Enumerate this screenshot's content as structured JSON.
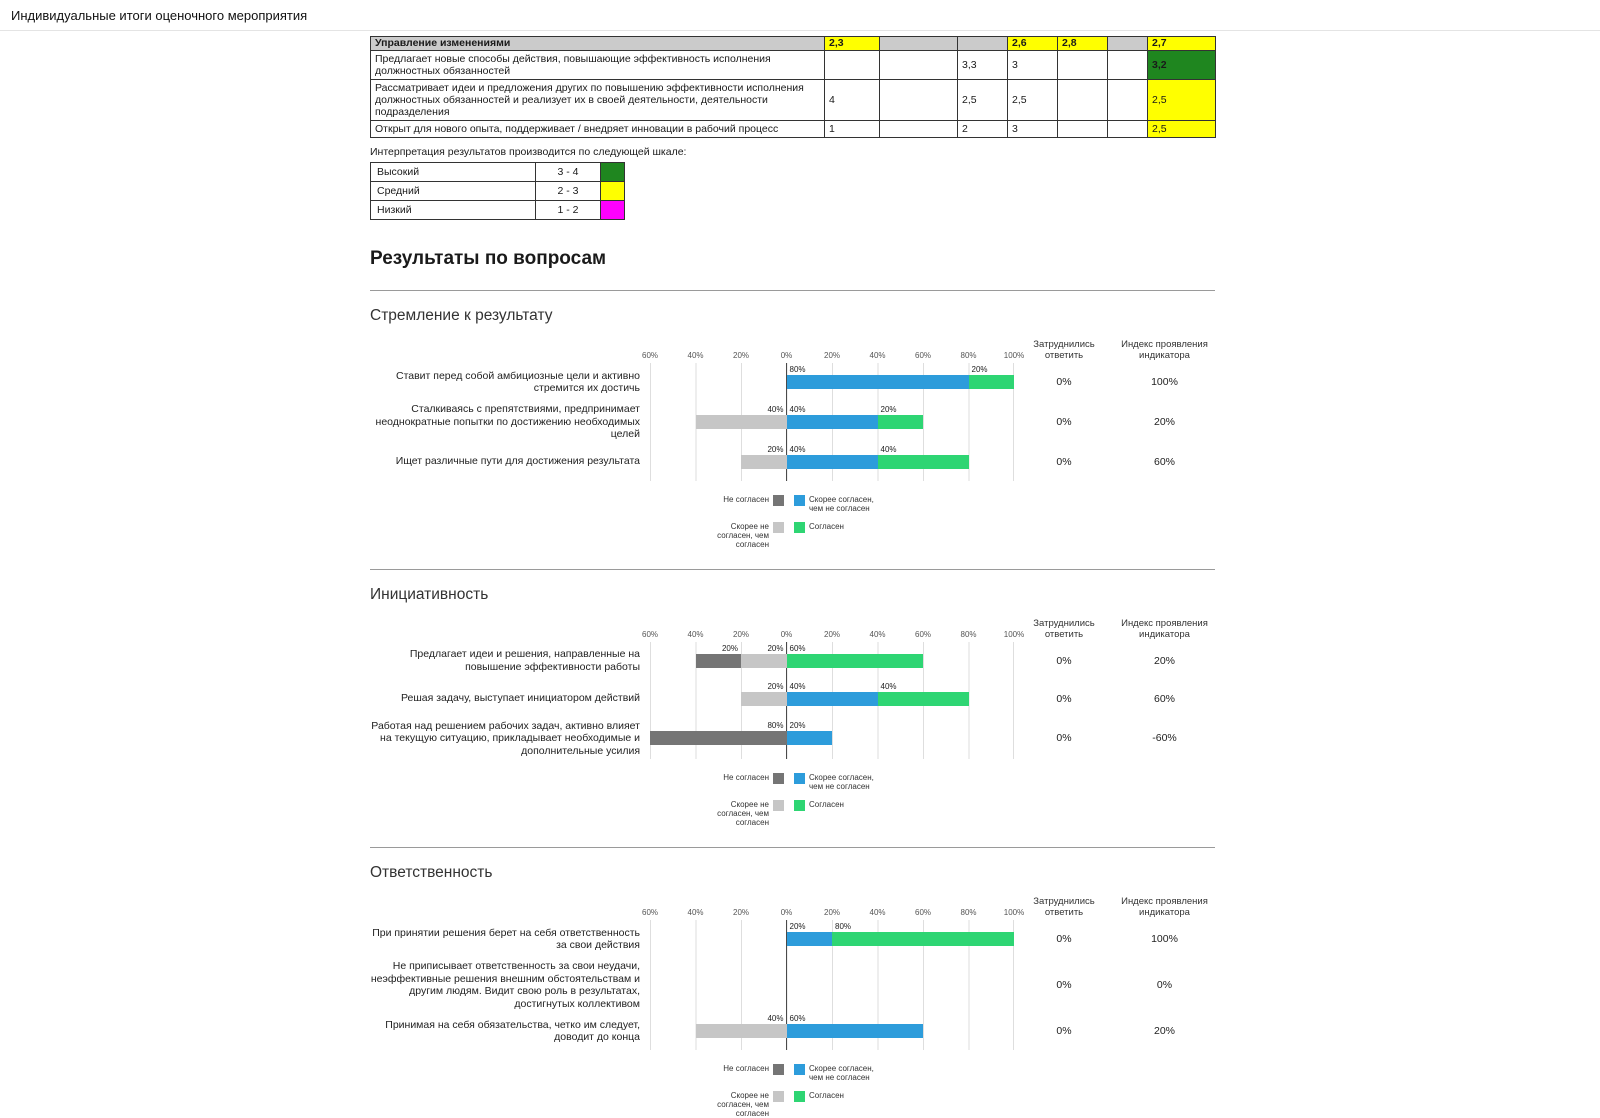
{
  "page": {
    "title": "Индивидуальные итоги оценочного мероприятия"
  },
  "colors": {
    "yellow": "#ffff00",
    "green_dark": "#1f861f",
    "magenta": "#ff00ff",
    "blue": "#2d9cdb",
    "green": "#2ed573",
    "gray_dark": "#757575",
    "gray_light": "#c6c6c6"
  },
  "competency_table": {
    "header_row": {
      "label": "Управление изменениями",
      "cells": [
        {
          "value": "2,3",
          "color": "yellow"
        },
        {
          "value": "",
          "color": ""
        },
        {
          "value": "",
          "color": ""
        },
        {
          "value": "2,6",
          "color": "yellow"
        },
        {
          "value": "2,8",
          "color": "yellow"
        },
        {
          "value": "",
          "color": ""
        },
        {
          "value": "2,7",
          "color": "yellow"
        }
      ]
    },
    "rows": [
      {
        "label": "Предлагает новые способы действия, повышающие эффективность исполнения должностных обязанностей",
        "cells": [
          {
            "value": "",
            "color": ""
          },
          {
            "value": "",
            "color": ""
          },
          {
            "value": "3,3",
            "color": ""
          },
          {
            "value": "3",
            "color": ""
          },
          {
            "value": "",
            "color": ""
          },
          {
            "value": "",
            "color": ""
          },
          {
            "value": "3,2",
            "color": "green"
          }
        ]
      },
      {
        "label": "Рассматривает идеи и предложения других по повышению эффективности исполнения должностных обязанностей и реализует их в своей деятельности, деятельности подразделения",
        "cells": [
          {
            "value": "4",
            "color": ""
          },
          {
            "value": "",
            "color": ""
          },
          {
            "value": "2,5",
            "color": ""
          },
          {
            "value": "2,5",
            "color": ""
          },
          {
            "value": "",
            "color": ""
          },
          {
            "value": "",
            "color": ""
          },
          {
            "value": "2,5",
            "color": "yellow"
          }
        ]
      },
      {
        "label": "Открыт для нового опыта, поддерживает / внедряет инновации в рабочий процесс",
        "cells": [
          {
            "value": "1",
            "color": ""
          },
          {
            "value": "",
            "color": ""
          },
          {
            "value": "2",
            "color": ""
          },
          {
            "value": "3",
            "color": ""
          },
          {
            "value": "",
            "color": ""
          },
          {
            "value": "",
            "color": ""
          },
          {
            "value": "2,5",
            "color": "yellow"
          }
        ]
      }
    ]
  },
  "scale": {
    "intro": "Интерпретация результатов производится по следующей шкале:",
    "rows": [
      {
        "label": "Высокий",
        "range": "3 - 4",
        "color": "#1f861f"
      },
      {
        "label": "Средний",
        "range": "2 - 3",
        "color": "#ffff00"
      },
      {
        "label": "Низкий",
        "range": "1 - 2",
        "color": "#ff00ff"
      }
    ]
  },
  "results": {
    "heading": "Результаты по вопросам",
    "col_headers": {
      "difficult": "Затруднились ответить",
      "index": "Индекс проявления индикатора"
    }
  },
  "legend": [
    {
      "key": "disagree",
      "label": "Не согласен",
      "color": "#757575",
      "position": "left"
    },
    {
      "key": "rather_disagree",
      "label": "Скорее не согласен, чем согласен",
      "color": "#c6c6c6",
      "position": "left"
    },
    {
      "key": "rather_agree",
      "label": "Скорее согласен, чем не согласен",
      "color": "#2d9cdb",
      "position": "right"
    },
    {
      "key": "agree",
      "label": "Согласен",
      "color": "#2ed573",
      "position": "right"
    }
  ],
  "chart_axis": {
    "min": -60,
    "max": 100,
    "ticks": [
      {
        "value": -60,
        "label": "60%"
      },
      {
        "value": -40,
        "label": "40%"
      },
      {
        "value": -20,
        "label": "20%"
      },
      {
        "value": 0,
        "label": "0%"
      },
      {
        "value": 20,
        "label": "20%"
      },
      {
        "value": 40,
        "label": "40%"
      },
      {
        "value": 60,
        "label": "60%"
      },
      {
        "value": 80,
        "label": "80%"
      },
      {
        "value": 100,
        "label": "100%"
      }
    ]
  },
  "chart_data": [
    {
      "type": "bar",
      "variant": "diverging-stacked-horizontal",
      "title": "Стремление к результату",
      "series_keys": [
        "disagree",
        "rather_disagree",
        "rather_agree",
        "agree"
      ],
      "rows": [
        {
          "label": "Ставит перед собой амбициозные цели и активно стремится их достичь",
          "values": {
            "disagree": 0,
            "rather_disagree": 0,
            "rather_agree": 80,
            "agree": 20
          },
          "difficult": "0%",
          "index": "100%"
        },
        {
          "label": "Сталкиваясь с препятствиями, предпринимает неоднократные попытки по достижению необходимых целей",
          "values": {
            "disagree": 0,
            "rather_disagree": 40,
            "rather_agree": 40,
            "agree": 20
          },
          "difficult": "0%",
          "index": "20%"
        },
        {
          "label": "Ищет различные пути для достижения результата",
          "values": {
            "disagree": 0,
            "rather_disagree": 20,
            "rather_agree": 40,
            "agree": 40
          },
          "difficult": "0%",
          "index": "60%"
        }
      ]
    },
    {
      "type": "bar",
      "variant": "diverging-stacked-horizontal",
      "title": "Инициативность",
      "series_keys": [
        "disagree",
        "rather_disagree",
        "rather_agree",
        "agree"
      ],
      "rows": [
        {
          "label": "Предлагает идеи и решения, направленные на повышение эффективности работы",
          "values": {
            "disagree": 20,
            "rather_disagree": 20,
            "rather_agree": 0,
            "agree": 60
          },
          "difficult": "0%",
          "index": "20%"
        },
        {
          "label": "Решая задачу, выступает инициатором действий",
          "values": {
            "disagree": 0,
            "rather_disagree": 20,
            "rather_agree": 40,
            "agree": 40
          },
          "difficult": "0%",
          "index": "60%"
        },
        {
          "label": "Работая над решением рабочих задач, активно влияет на текущую ситуацию, прикладывает необходимые и дополнительные усилия",
          "values": {
            "disagree": 80,
            "rather_disagree": 0,
            "rather_agree": 20,
            "agree": 0
          },
          "difficult": "0%",
          "index": "-60%"
        }
      ]
    },
    {
      "type": "bar",
      "variant": "diverging-stacked-horizontal",
      "title": "Ответственность",
      "series_keys": [
        "disagree",
        "rather_disagree",
        "rather_agree",
        "agree"
      ],
      "rows": [
        {
          "label": "При принятии решения берет на себя ответственность за свои действия",
          "values": {
            "disagree": 0,
            "rather_disagree": 0,
            "rather_agree": 20,
            "agree": 80
          },
          "difficult": "0%",
          "index": "100%"
        },
        {
          "label": "Не приписывает ответственность за свои неудачи, неэффективные решения внешним обстоятельствам и другим людям. Видит свою роль в результатах, достигнутых коллективом",
          "values": {
            "disagree": 0,
            "rather_disagree": 0,
            "rather_agree": 0,
            "agree": 0
          },
          "difficult": "0%",
          "index": "0%"
        },
        {
          "label": "Принимая на себя обязательства, четко им следует, доводит до конца",
          "values": {
            "disagree": 0,
            "rather_disagree": 40,
            "rather_agree": 60,
            "agree": 0
          },
          "difficult": "0%",
          "index": "20%"
        }
      ]
    }
  ]
}
